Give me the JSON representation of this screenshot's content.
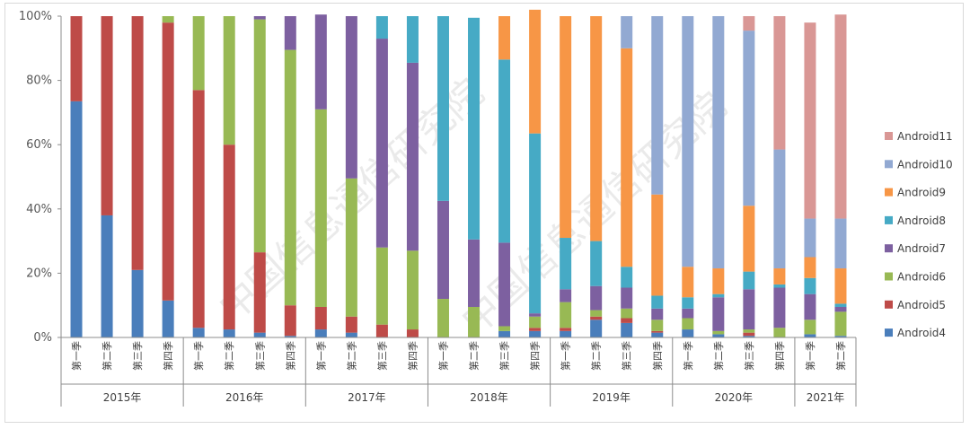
{
  "chart_data": {
    "type": "bar",
    "stacked": true,
    "percent_stacked": true,
    "title": "",
    "xlabel": "",
    "ylabel": "",
    "ylim": [
      0,
      100
    ],
    "yticks": [
      "0%",
      "20%",
      "40%",
      "60%",
      "80%",
      "100%"
    ],
    "grid": false,
    "legend_position": "right",
    "watermark": "中国信息通信研究院",
    "years": [
      {
        "label": "2015年",
        "quarters": 4
      },
      {
        "label": "2016年",
        "quarters": 4
      },
      {
        "label": "2017年",
        "quarters": 4
      },
      {
        "label": "2018年",
        "quarters": 4
      },
      {
        "label": "2019年",
        "quarters": 4
      },
      {
        "label": "2020年",
        "quarters": 4
      },
      {
        "label": "2021年",
        "quarters": 2
      }
    ],
    "categories": [
      "第一季",
      "第二季",
      "第三季",
      "第四季",
      "第一季",
      "第二季",
      "第三季",
      "第四季",
      "第一季",
      "第二季",
      "第三季",
      "第四季",
      "第一季",
      "第二季",
      "第三季",
      "第四季",
      "第一季",
      "第二季",
      "第三季",
      "第四季",
      "第一季",
      "第二季",
      "第三季",
      "第四季",
      "第一季",
      "第二季"
    ],
    "series": [
      {
        "name": "Android4",
        "color": "#4a7ebb",
        "values": [
          73.5,
          38,
          21,
          11.5,
          3,
          2.5,
          1.5,
          0.5,
          2.5,
          1.5,
          0,
          0,
          0,
          0,
          2,
          2,
          2,
          5.5,
          4.5,
          1.5,
          2.5,
          1,
          0.5,
          0,
          1,
          0.5
        ]
      },
      {
        "name": "Android5",
        "color": "#be4b48",
        "values": [
          26.5,
          62,
          79,
          86.5,
          74,
          57.5,
          25,
          9.5,
          7,
          5,
          4,
          2.5,
          0,
          0,
          0,
          1,
          1,
          1,
          1.5,
          0.5,
          0,
          0,
          1,
          0,
          0,
          0
        ]
      },
      {
        "name": "Android6",
        "color": "#98b954",
        "values": [
          0,
          0,
          0,
          2,
          23,
          40,
          72.5,
          79.5,
          61.5,
          43,
          24,
          24.5,
          12,
          9.5,
          1.5,
          3.5,
          8,
          2,
          3,
          3.5,
          3.5,
          1,
          1,
          3,
          4.5,
          7.5
        ]
      },
      {
        "name": "Android7",
        "color": "#7d60a0",
        "values": [
          0,
          0,
          0,
          0,
          0,
          0,
          1,
          10.5,
          29.5,
          50.5,
          65,
          58.5,
          30.5,
          21,
          26,
          1,
          4,
          7.5,
          6.5,
          3.5,
          3,
          10.5,
          12.5,
          12.5,
          8,
          1.5
        ]
      },
      {
        "name": "Android8",
        "color": "#46aac5",
        "values": [
          0,
          0,
          0,
          0,
          0,
          0,
          0,
          0,
          0,
          0,
          7,
          14.5,
          57.5,
          69,
          57,
          56,
          16,
          14,
          6.5,
          4,
          3.5,
          1,
          5.5,
          1,
          5,
          1
        ]
      },
      {
        "name": "Android9",
        "color": "#f79646",
        "values": [
          0,
          0,
          0,
          0,
          0,
          0,
          0,
          0,
          0,
          0,
          0,
          0,
          0,
          0,
          13.5,
          38.5,
          69,
          70,
          68,
          31.5,
          9.5,
          8,
          20.5,
          5,
          6.5,
          11
        ]
      },
      {
        "name": "Android10",
        "color": "#92a9d2",
        "values": [
          0,
          0,
          0,
          0,
          0,
          0,
          0,
          0,
          0,
          0,
          0,
          0,
          0,
          0,
          0,
          0,
          0,
          0,
          10,
          55.5,
          78,
          78.5,
          54.5,
          37,
          12,
          15.5
        ]
      },
      {
        "name": "Android11",
        "color": "#d99795",
        "values": [
          0,
          0,
          0,
          0,
          0,
          0,
          0,
          0,
          0,
          0,
          0,
          0,
          0,
          0,
          0,
          0,
          0,
          0,
          0,
          0,
          0,
          0,
          4.5,
          41.5,
          61,
          63.5
        ]
      }
    ]
  }
}
